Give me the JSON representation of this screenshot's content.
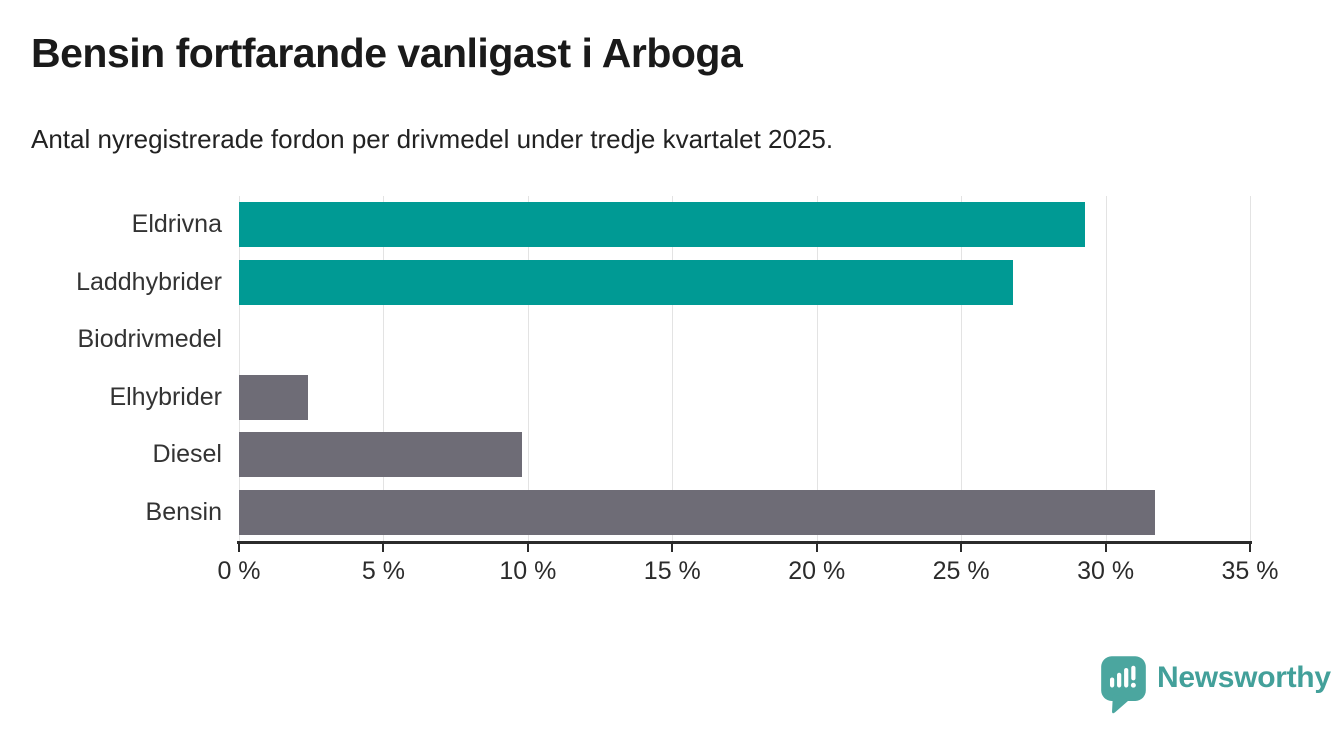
{
  "header": {
    "title": "Bensin fortfarande vanligast i Arboga",
    "subtitle": "Antal nyregistrerade fordon per drivmedel under tredje kvartalet 2025."
  },
  "chart_data": {
    "type": "bar",
    "orientation": "horizontal",
    "title": "Bensin fortfarande vanligast i Arboga",
    "subtitle": "Antal nyregistrerade fordon per drivmedel under tredje kvartalet 2025.",
    "categories": [
      "Eldrivna",
      "Laddhybrider",
      "Biodrivmedel",
      "Elhybrider",
      "Diesel",
      "Bensin"
    ],
    "values": [
      29.3,
      26.8,
      0,
      2.4,
      9.8,
      31.7
    ],
    "unit": "%",
    "bar_colors": [
      "#009a94",
      "#009a94",
      "#6e6c76",
      "#6e6c76",
      "#6e6c76",
      "#6e6c76"
    ],
    "xlim": [
      0,
      35
    ],
    "x_ticks": [
      0,
      5,
      10,
      15,
      20,
      25,
      30,
      35
    ],
    "x_tick_labels": [
      "0 %",
      "5 %",
      "10 %",
      "15 %",
      "20 %",
      "25 %",
      "30 %",
      "35 %"
    ],
    "xlabel": "",
    "ylabel": "",
    "grid": "vertical",
    "legend": "none"
  },
  "footer": {
    "brand": "Newsworthy",
    "logo_icon": "newsworthy-speech-bubble-bar-chart-icon"
  },
  "colors": {
    "accent_teal": "#009a94",
    "bar_gray": "#6e6c76",
    "title_text": "#1a1a1a",
    "body_text": "#222222",
    "label_text": "#333333",
    "axis": "#2b2b2b",
    "gridline": "#e3e3e3",
    "brand_teal": "#43a09a",
    "logo_bubble": "#4ba69f"
  }
}
